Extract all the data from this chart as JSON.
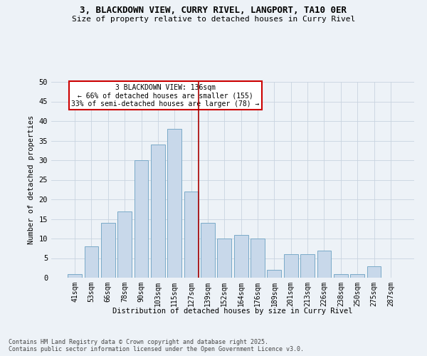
{
  "title_line1": "3, BLACKDOWN VIEW, CURRY RIVEL, LANGPORT, TA10 0ER",
  "title_line2": "Size of property relative to detached houses in Curry Rivel",
  "xlabel": "Distribution of detached houses by size in Curry Rivel",
  "ylabel": "Number of detached properties",
  "bar_labels": [
    "41sqm",
    "53sqm",
    "66sqm",
    "78sqm",
    "90sqm",
    "103sqm",
    "115sqm",
    "127sqm",
    "139sqm",
    "152sqm",
    "164sqm",
    "176sqm",
    "189sqm",
    "201sqm",
    "213sqm",
    "226sqm",
    "238sqm",
    "250sqm",
    "275sqm",
    "287sqm"
  ],
  "bar_values": [
    1,
    8,
    14,
    17,
    30,
    34,
    38,
    22,
    14,
    10,
    11,
    10,
    2,
    6,
    6,
    7,
    1,
    1,
    3,
    0
  ],
  "bar_color": "#c8d8ea",
  "bar_edge_color": "#7aaac8",
  "vline_color": "#aa0000",
  "annotation_title": "3 BLACKDOWN VIEW: 136sqm",
  "annotation_line2": "← 66% of detached houses are smaller (155)",
  "annotation_line3": "33% of semi-detached houses are larger (78) →",
  "annotation_box_color": "#ffffff",
  "annotation_edge_color": "#cc0000",
  "ylim": [
    0,
    50
  ],
  "yticks": [
    0,
    5,
    10,
    15,
    20,
    25,
    30,
    35,
    40,
    45,
    50
  ],
  "footer_line1": "Contains HM Land Registry data © Crown copyright and database right 2025.",
  "footer_line2": "Contains public sector information licensed under the Open Government Licence v3.0.",
  "bg_color": "#edf2f7",
  "grid_color": "#c8d4e0"
}
